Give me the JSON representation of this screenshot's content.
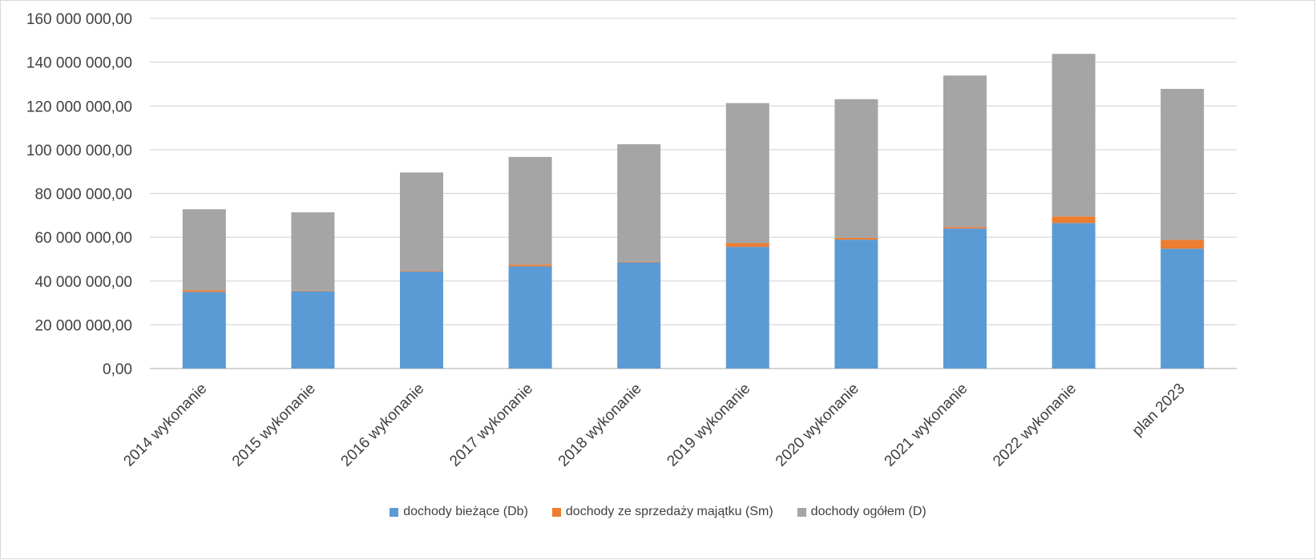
{
  "chart_data": {
    "type": "bar",
    "stacked": true,
    "categories": [
      "2014 wykonanie",
      "2015 wykonanie",
      "2016 wykonanie",
      "2017 wykonanie",
      "2018 wykonanie",
      "2019 wykonanie",
      "2020 wykonanie",
      "2021 wykonanie",
      "2022 wykonanie",
      "plan 2023"
    ],
    "series": [
      {
        "name": "dochody bieżące (Db)",
        "color": "#5B9BD5",
        "values": [
          35000000,
          35300000,
          44300000,
          46700000,
          48500000,
          55600000,
          58900000,
          64000000,
          66500000,
          54800000
        ]
      },
      {
        "name": "dochody ze sprzedaży majątku (Sm)",
        "color": "#ED7D31",
        "values": [
          800000,
          300000,
          300000,
          800000,
          300000,
          1700000,
          800000,
          700000,
          3000000,
          4000000
        ]
      },
      {
        "name": "dochody ogółem (D)",
        "color": "#A5A5A5",
        "values": [
          37000000,
          35800000,
          45000000,
          49200000,
          53700000,
          64000000,
          63400000,
          69200000,
          74300000,
          69000000
        ]
      }
    ],
    "y_ticks": [
      "0,00",
      "20 000 000,00",
      "40 000 000,00",
      "60 000 000,00",
      "80 000 000,00",
      "100 000 000,00",
      "120 000 000,00",
      "140 000 000,00",
      "160 000 000,00"
    ],
    "ylim": [
      0,
      160000000
    ],
    "grid": true,
    "legend_position": "bottom",
    "title": "",
    "xlabel": "",
    "ylabel": ""
  }
}
